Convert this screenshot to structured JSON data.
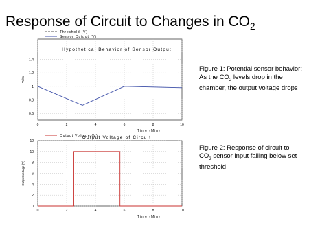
{
  "slide": {
    "title": {
      "text": "Response of Circuit to Changes in CO",
      "sub": "2"
    },
    "captions": [
      {
        "before": "Figure 1:  Potential sensor behavior;  As the CO",
        "sub": "2",
        "after": " levels drop in the chamber, the output voltage drops"
      },
      {
        "before": "Figure 2:  Response of circuit to CO",
        "sub": "2",
        "after": " sensor input falling below set threshold"
      }
    ]
  },
  "chart_data": [
    {
      "type": "line",
      "title": "Hypothetical Behavior of Sensor Output",
      "xlabel": "Time (Min)",
      "ylabel": "Volts",
      "xlim": [
        0,
        10
      ],
      "xticks": [
        0,
        2,
        4,
        6,
        8,
        10
      ],
      "ylim": [
        0.5,
        1.7
      ],
      "yticks": [
        0.6,
        0.8,
        1,
        1.2,
        1.4
      ],
      "grid": true,
      "series": [
        {
          "name": "Threshold (V)",
          "color": "#555555",
          "dashed": true,
          "x": [
            0,
            10
          ],
          "values": [
            0.8,
            0.8
          ]
        },
        {
          "name": "Sensor Output (V)",
          "color": "#3d4fa8",
          "dashed": false,
          "x": [
            0,
            3.1,
            6,
            10
          ],
          "values": [
            1,
            0.72,
            1,
            0.98
          ]
        }
      ]
    },
    {
      "type": "line",
      "title": "Output Voltage of Circuit",
      "xlabel": "Time (Min)",
      "ylabel": "Output voltage (V)",
      "xlim": [
        0,
        10
      ],
      "xticks": [
        0,
        2,
        4,
        6,
        8,
        10
      ],
      "ylim": [
        0,
        12
      ],
      "yticks": [
        0,
        2,
        4,
        6,
        8,
        10,
        12
      ],
      "grid": true,
      "series": [
        {
          "name": "Output Voltage (V)",
          "color": "#c8312f",
          "dashed": false,
          "x": [
            0,
            2.5,
            2.5,
            5.7,
            5.7,
            10
          ],
          "values": [
            0,
            0,
            10,
            10,
            0,
            0
          ]
        }
      ]
    }
  ]
}
